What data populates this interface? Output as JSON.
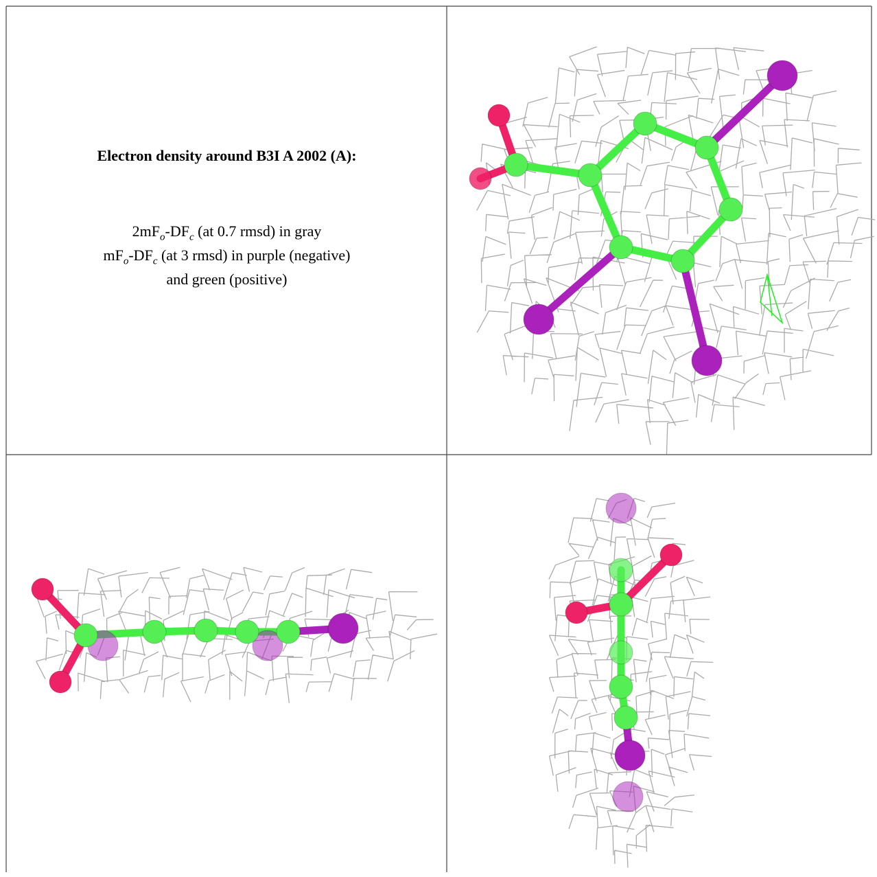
{
  "caption": {
    "title": "Electron density around B3I A 2002 (A):",
    "lines": [
      [
        "2mF",
        "o",
        "-DF",
        "c",
        " (at 0.7 rmsd) in gray"
      ],
      [
        "mF",
        "o",
        "-DF",
        "c",
        " (at 3 rmsd) in purple (negative)"
      ],
      [
        "and green (positive)"
      ]
    ]
  }
}
